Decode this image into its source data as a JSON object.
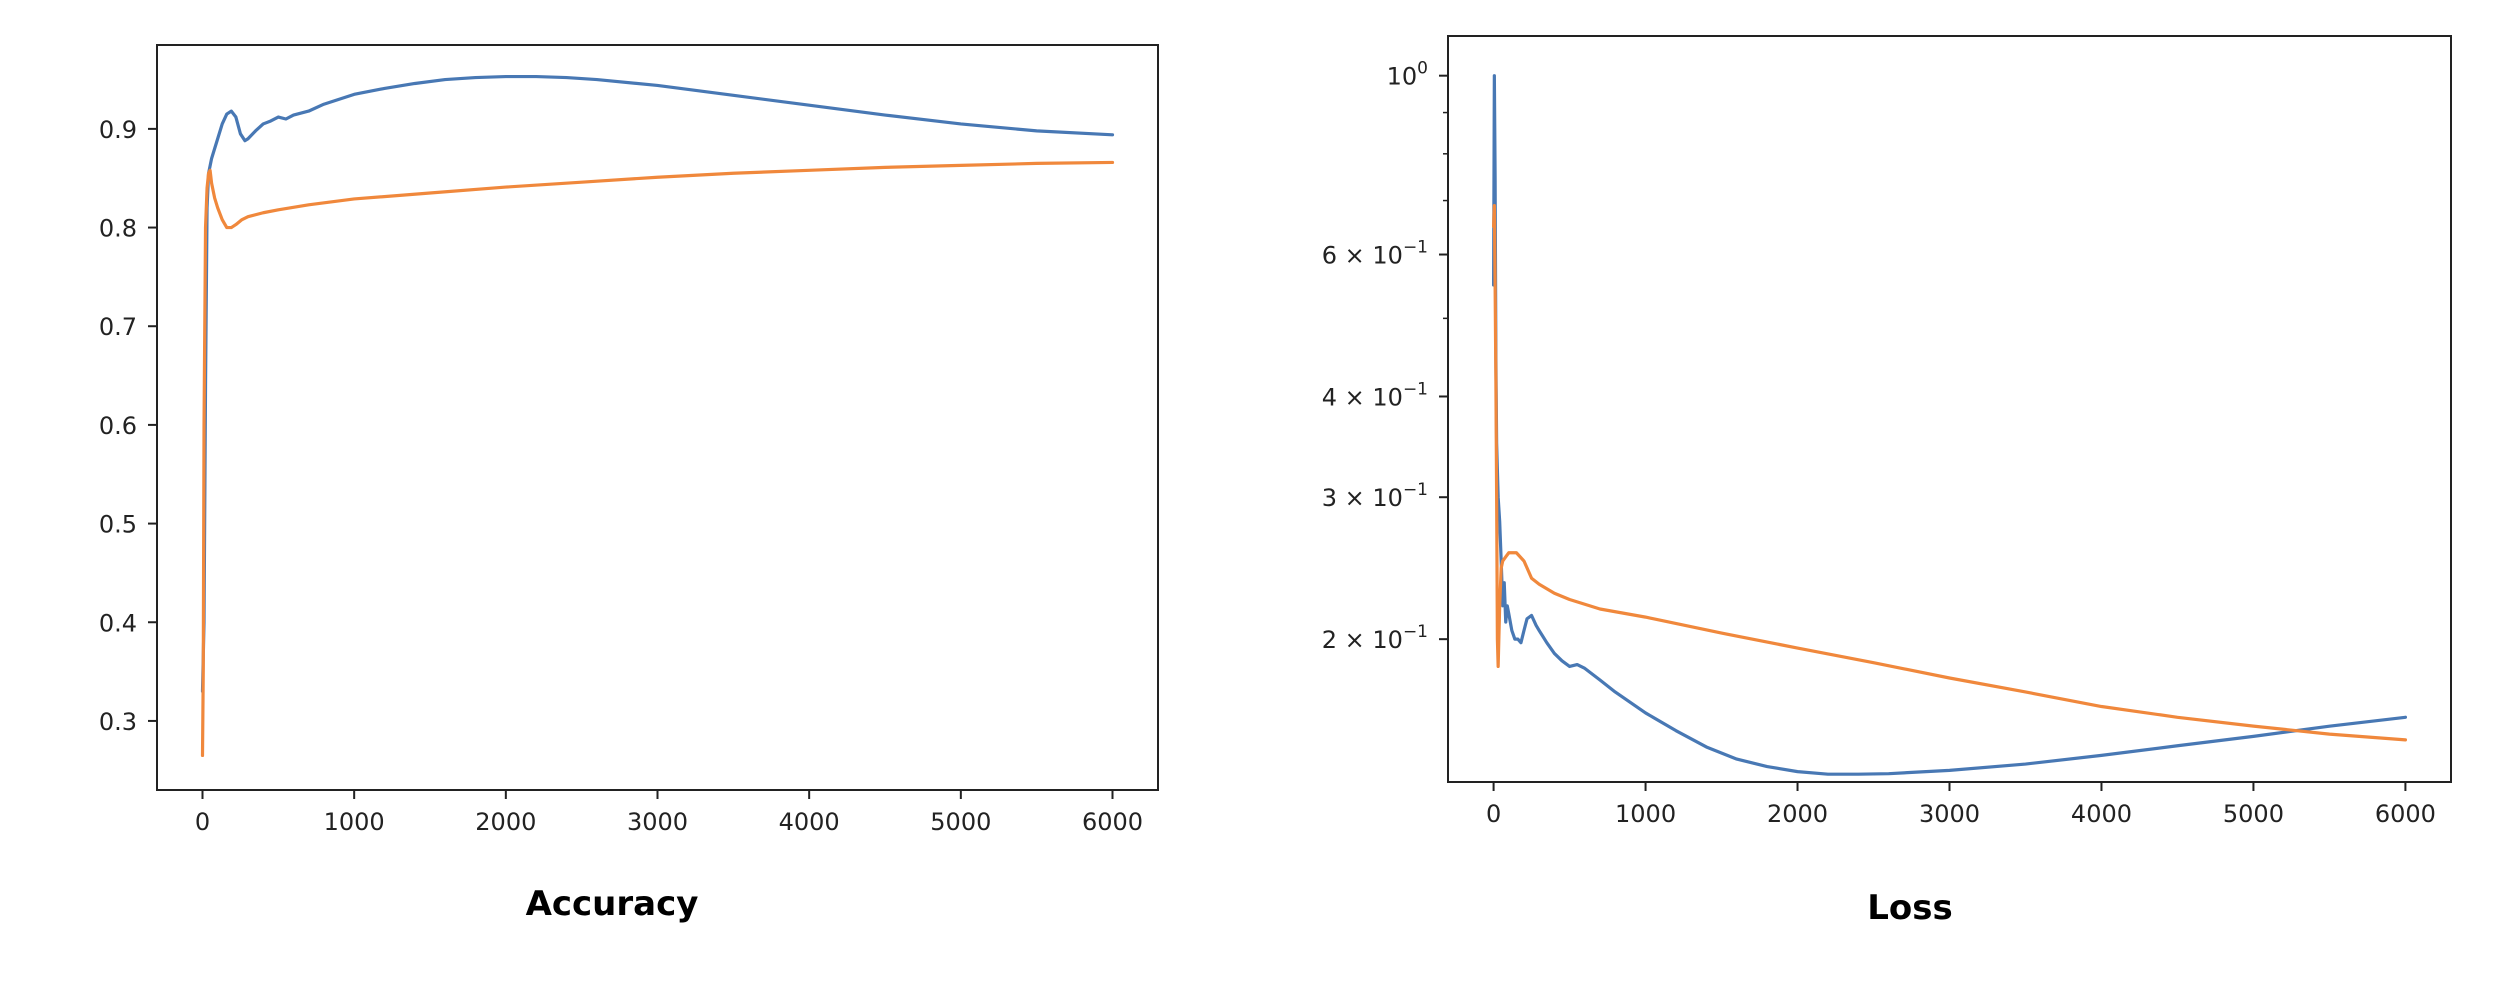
{
  "colors": {
    "series_1": "#4878b4",
    "series_2": "#f0883c",
    "axes": "#222222",
    "background": "#ffffff"
  },
  "chart_data": [
    {
      "type": "line",
      "title": "Accuracy",
      "xlabel": "",
      "ylabel": "",
      "xlim": [
        -300,
        6300
      ],
      "ylim": [
        0.23,
        0.985
      ],
      "xticks": [
        0,
        1000,
        2000,
        3000,
        4000,
        5000,
        6000
      ],
      "yticks": [
        0.3,
        0.4,
        0.5,
        0.6,
        0.7,
        0.8,
        0.9
      ],
      "ytick_labels": [
        "0.3",
        "0.4",
        "0.5",
        "0.6",
        "0.7",
        "0.8",
        "0.9"
      ],
      "grid": false,
      "series": [
        {
          "color": "#4878b4",
          "x": [
            0,
            10,
            20,
            30,
            40,
            60,
            80,
            100,
            130,
            160,
            190,
            220,
            250,
            280,
            300,
            350,
            400,
            450,
            500,
            550,
            600,
            700,
            800,
            1000,
            1200,
            1400,
            1600,
            1800,
            2000,
            2200,
            2400,
            2600,
            3000,
            3500,
            4000,
            4500,
            5000,
            5500,
            6000
          ],
          "y": [
            0.33,
            0.4,
            0.64,
            0.82,
            0.855,
            0.87,
            0.88,
            0.89,
            0.905,
            0.915,
            0.918,
            0.912,
            0.895,
            0.888,
            0.89,
            0.898,
            0.905,
            0.908,
            0.912,
            0.91,
            0.914,
            0.918,
            0.925,
            0.935,
            0.941,
            0.946,
            0.95,
            0.952,
            0.953,
            0.953,
            0.952,
            0.95,
            0.944,
            0.934,
            0.924,
            0.914,
            0.905,
            0.898,
            0.894
          ]
        },
        {
          "color": "#f0883c",
          "x": [
            0,
            5,
            10,
            20,
            30,
            40,
            50,
            60,
            80,
            100,
            130,
            160,
            190,
            220,
            260,
            300,
            400,
            500,
            700,
            1000,
            1500,
            2000,
            2500,
            3000,
            3500,
            4000,
            4500,
            5000,
            5500,
            6000
          ],
          "y": [
            0.265,
            0.35,
            0.6,
            0.8,
            0.84,
            0.855,
            0.858,
            0.845,
            0.83,
            0.82,
            0.808,
            0.8,
            0.8,
            0.803,
            0.808,
            0.811,
            0.815,
            0.818,
            0.823,
            0.829,
            0.835,
            0.841,
            0.846,
            0.851,
            0.855,
            0.858,
            0.861,
            0.863,
            0.865,
            0.866
          ]
        }
      ]
    },
    {
      "type": "line",
      "title": "Loss",
      "xlabel": "",
      "ylabel": "",
      "yscale": "log",
      "xlim": [
        -300,
        6300
      ],
      "ylim": [
        0.133,
        1.12
      ],
      "xticks": [
        0,
        1000,
        2000,
        3000,
        4000,
        5000,
        6000
      ],
      "yticks": [
        0.2,
        0.3,
        0.4,
        0.6,
        1.0
      ],
      "ytick_labels": [
        {
          "mantissa": "2 × 10",
          "exp": "−1"
        },
        {
          "mantissa": "3 × 10",
          "exp": "−1"
        },
        {
          "mantissa": "4 × 10",
          "exp": "−1"
        },
        {
          "mantissa": "6 × 10",
          "exp": "−1"
        },
        {
          "mantissa": "10",
          "exp": "0"
        }
      ],
      "grid": false,
      "series": [
        {
          "color": "#4878b4",
          "x": [
            0,
            5,
            10,
            15,
            20,
            30,
            40,
            50,
            60,
            70,
            80,
            90,
            100,
            120,
            140,
            160,
            180,
            200,
            220,
            250,
            280,
            300,
            350,
            400,
            450,
            500,
            550,
            600,
            700,
            800,
            1000,
            1200,
            1400,
            1600,
            1800,
            2000,
            2200,
            2400,
            2600,
            3000,
            3500,
            4000,
            4500,
            5000,
            5500,
            6000
          ],
          "y": [
            0.55,
            1.0,
            0.75,
            0.45,
            0.35,
            0.3,
            0.28,
            0.25,
            0.22,
            0.235,
            0.21,
            0.22,
            0.215,
            0.205,
            0.2,
            0.2,
            0.198,
            0.205,
            0.212,
            0.214,
            0.208,
            0.205,
            0.198,
            0.192,
            0.188,
            0.185,
            0.186,
            0.184,
            0.178,
            0.172,
            0.162,
            0.154,
            0.147,
            0.142,
            0.139,
            0.137,
            0.136,
            0.136,
            0.1362,
            0.1375,
            0.14,
            0.1435,
            0.1475,
            0.1515,
            0.156,
            0.16
          ]
        },
        {
          "color": "#f0883c",
          "x": [
            0,
            5,
            10,
            15,
            20,
            25,
            30,
            40,
            50,
            60,
            80,
            100,
            150,
            200,
            250,
            300,
            400,
            500,
            700,
            1000,
            1500,
            2000,
            2500,
            3000,
            3500,
            4000,
            4500,
            5000,
            5500,
            6000
          ],
          "y": [
            0.65,
            0.69,
            0.55,
            0.42,
            0.3,
            0.2,
            0.185,
            0.22,
            0.245,
            0.25,
            0.253,
            0.256,
            0.256,
            0.25,
            0.238,
            0.234,
            0.228,
            0.224,
            0.218,
            0.213,
            0.2035,
            0.195,
            0.187,
            0.179,
            0.172,
            0.165,
            0.16,
            0.156,
            0.1525,
            0.15
          ]
        }
      ]
    }
  ]
}
